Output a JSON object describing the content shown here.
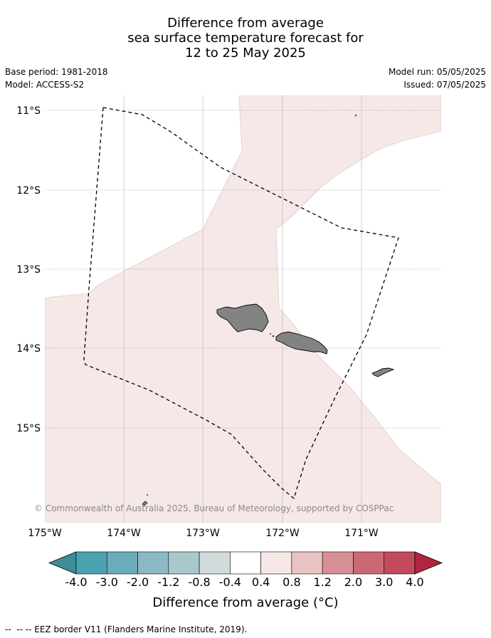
{
  "title": {
    "line1": "Difference from average",
    "line2": "sea surface temperature forecast for",
    "line3": "12 to 25 May 2025"
  },
  "meta": {
    "base_period": "Base period: 1981-2018",
    "model": "Model: ACCESS-S2",
    "model_run": "Model run: 05/05/2025",
    "issued": "Issued: 07/05/2025"
  },
  "map": {
    "lat_labels": [
      "11°S",
      "12°S",
      "13°S",
      "14°S",
      "15°S"
    ],
    "lon_labels": [
      "175°W",
      "174°W",
      "173°W",
      "172°W",
      "171°W"
    ],
    "copyright": "© Commonwealth of Australia 2025, Bureau of Meteorology, supported by COSPPac",
    "fill_color": "#f5e8e6",
    "land_color": "#838383"
  },
  "colorbar": {
    "title": "Difference from average (°C)",
    "ticks": [
      "-4.0",
      "-3.0",
      "-2.0",
      "-1.2",
      "-0.8",
      "-0.4",
      "0.4",
      "0.8",
      "1.2",
      "2.0",
      "3.0",
      "4.0"
    ],
    "colors": [
      "#3e8c98",
      "#4aa1b0",
      "#6aacbc",
      "#8bbac4",
      "#a9c8cc",
      "#d1dbdc",
      "#ffffff",
      "#f5e8e6",
      "#e8c5c2",
      "#d88f95",
      "#cc6875",
      "#c24a5c",
      "#b22440"
    ]
  },
  "legend": {
    "eez_label": "-- EEZ border V11 (Flanders Marine Institute, 2019)."
  }
}
